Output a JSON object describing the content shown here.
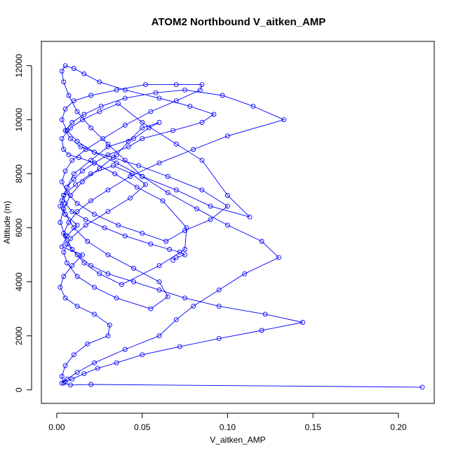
{
  "chart_data": {
    "type": "line",
    "title": "ATOM2 Northbound V_aitken_AMP",
    "xlabel": "V_aitken_AMP",
    "ylabel": "Altitude (m)",
    "xlim": [
      -0.009,
      0.221
    ],
    "ylim": [
      -500,
      12900
    ],
    "xticks": [
      0.0,
      0.05,
      0.1,
      0.15,
      0.2
    ],
    "xtick_labels": [
      "0.00",
      "0.05",
      "0.10",
      "0.15",
      "0.20"
    ],
    "yticks": [
      0,
      2000,
      4000,
      6000,
      8000,
      10000,
      12000
    ],
    "ytick_labels": [
      "0",
      "2000",
      "4000",
      "6000",
      "8000",
      "10000",
      "12000"
    ],
    "grid": false,
    "legend": "none",
    "series_style": {
      "color": "#0000ff",
      "marker": "open-circle",
      "line": "solid"
    },
    "series": [
      {
        "x": [
          0.214,
          0.02,
          0.008,
          0.004,
          0.003,
          0.005,
          0.01,
          0.018,
          0.03,
          0.031,
          0.022,
          0.012,
          0.005,
          0.002,
          0.004,
          0.009,
          0.015,
          0.003,
          0.006,
          0.012,
          0.005,
          0.002,
          0.004,
          0.011,
          0.02,
          0.033,
          0.044,
          0.052,
          0.043,
          0.03,
          0.017,
          0.008,
          0.004,
          0.006,
          0.012,
          0.022,
          0.035,
          0.055,
          0.065,
          0.06,
          0.045,
          0.03,
          0.018,
          0.01,
          0.005,
          0.003,
          0.006,
          0.01,
          0.02,
          0.03,
          0.045,
          0.054,
          0.06,
          0.05,
          0.042,
          0.035,
          0.025,
          0.015,
          0.008,
          0.004,
          0.002,
          0.005,
          0.009,
          0.016,
          0.025,
          0.038,
          0.06,
          0.075,
          0.076,
          0.062,
          0.047,
          0.034,
          0.022,
          0.013,
          0.007,
          0.004,
          0.003,
          0.008,
          0.015,
          0.025,
          0.036,
          0.05,
          0.07,
          0.085,
          0.1,
          0.113,
          0.09,
          0.07,
          0.05,
          0.035,
          0.022,
          0.012,
          0.006,
          0.003,
          0.005,
          0.01,
          0.02,
          0.035,
          0.052,
          0.07,
          0.085,
          0.084,
          0.07,
          0.055,
          0.04,
          0.027,
          0.017,
          0.009,
          0.005,
          0.003,
          0.006,
          0.012,
          0.022,
          0.036,
          0.05,
          0.064,
          0.075,
          0.09,
          0.1,
          0.085,
          0.065,
          0.048,
          0.033,
          0.022,
          0.014,
          0.008,
          0.005,
          0.009,
          0.016,
          0.026,
          0.04,
          0.058,
          0.075,
          0.097,
          0.115,
          0.133,
          0.1,
          0.08,
          0.06,
          0.043,
          0.03,
          0.02,
          0.012,
          0.007,
          0.004,
          0.006,
          0.012,
          0.02,
          0.03,
          0.045,
          0.06,
          0.075,
          0.095,
          0.122,
          0.144,
          0.12,
          0.095,
          0.072,
          0.05,
          0.035,
          0.024,
          0.016,
          0.009,
          0.005,
          0.003,
          0.006,
          0.012,
          0.022,
          0.04,
          0.06,
          0.07,
          0.08,
          0.095,
          0.11,
          0.13,
          0.12,
          0.1,
          0.082,
          0.065,
          0.05,
          0.04,
          0.03,
          0.02,
          0.012,
          0.007,
          0.004,
          0.003,
          0.005,
          0.01,
          0.016,
          0.025,
          0.04,
          0.06,
          0.078,
          0.092,
          0.085,
          0.068,
          0.05,
          0.042,
          0.03,
          0.022,
          0.015,
          0.01,
          0.006,
          0.004,
          0.005,
          0.009,
          0.017,
          0.028,
          0.04,
          0.055,
          0.066,
          0.072,
          0.075,
          0.07,
          0.068
        ],
        "y": [
          100,
          200,
          180,
          250,
          500,
          900,
          1300,
          1700,
          2000,
          2400,
          2800,
          3100,
          3400,
          3800,
          4200,
          4600,
          5000,
          5300,
          5700,
          6100,
          6500,
          6800,
          7200,
          7600,
          8000,
          8300,
          8000,
          7600,
          7100,
          6600,
          6100,
          5600,
          5100,
          4700,
          4200,
          3800,
          3400,
          3000,
          3450,
          4000,
          4500,
          5000,
          5500,
          6000,
          6500,
          7000,
          7500,
          8000,
          8500,
          9000,
          9300,
          9700,
          9900,
          9700,
          9200,
          8700,
          8200,
          7700,
          7200,
          6700,
          6200,
          5700,
          5200,
          4700,
          4300,
          3900,
          4600,
          5200,
          6000,
          7000,
          7500,
          8000,
          8400,
          8600,
          8700,
          8900,
          9300,
          9700,
          10000,
          10300,
          10600,
          9900,
          9100,
          8500,
          7200,
          6400,
          6800,
          7400,
          7900,
          8400,
          8800,
          9200,
          9600,
          10000,
          10400,
          10700,
          10900,
          11100,
          11300,
          11300,
          11300,
          11100,
          10700,
          10300,
          9800,
          9300,
          8900,
          8500,
          8100,
          7700,
          7300,
          6900,
          6500,
          6100,
          5800,
          5500,
          5900,
          6300,
          6800,
          7400,
          7900,
          8300,
          8600,
          8800,
          9000,
          9300,
          9600,
          9900,
          10200,
          10500,
          10800,
          11000,
          11100,
          10900,
          10500,
          10000,
          9400,
          8900,
          8400,
          7900,
          7400,
          7000,
          6600,
          6200,
          5800,
          5400,
          5000,
          4600,
          4300,
          4000,
          3700,
          3400,
          3100,
          2800,
          2500,
          2200,
          1900,
          1600,
          1300,
          1000,
          800,
          600,
          400,
          300,
          250,
          400,
          650,
          1000,
          1500,
          2000,
          2600,
          3100,
          3700,
          4300,
          4900,
          5500,
          6100,
          6700,
          7300,
          7900,
          8500,
          9100,
          9700,
          10300,
          10900,
          11400,
          11800,
          12000,
          11900,
          11700,
          11400,
          11100,
          10800,
          10500,
          10200,
          9900,
          9600,
          9300,
          9000,
          8700,
          8400,
          8100,
          7800,
          7500,
          7200,
          6900,
          6600,
          6300,
          6000,
          5700,
          5400,
          5200,
          5100,
          5000,
          4900,
          4800
        ]
      }
    ]
  }
}
